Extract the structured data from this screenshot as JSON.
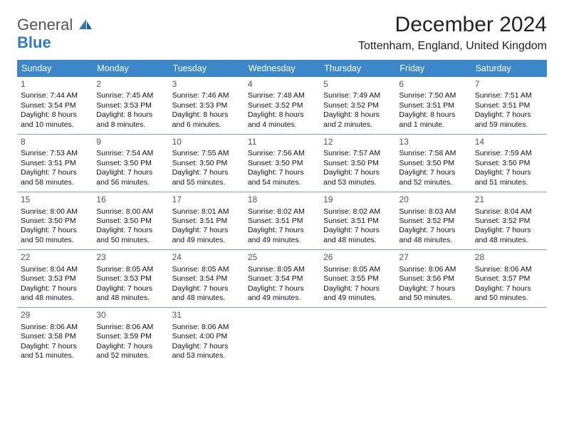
{
  "logo": {
    "text_top": "General",
    "text_bottom": "Blue",
    "color_gray": "#515355",
    "color_blue": "#2f7bbf"
  },
  "title": "December 2024",
  "subtitle": "Tottenham, England, United Kingdom",
  "weekday_bg": "#3b87c8",
  "weekday_fg": "#ffffff",
  "divider_color": "#7aa3c8",
  "weekdays": [
    "Sunday",
    "Monday",
    "Tuesday",
    "Wednesday",
    "Thursday",
    "Friday",
    "Saturday"
  ],
  "weeks": [
    [
      {
        "n": "1",
        "sunrise": "Sunrise: 7:44 AM",
        "sunset": "Sunset: 3:54 PM",
        "daylight": "Daylight: 8 hours and 10 minutes."
      },
      {
        "n": "2",
        "sunrise": "Sunrise: 7:45 AM",
        "sunset": "Sunset: 3:53 PM",
        "daylight": "Daylight: 8 hours and 8 minutes."
      },
      {
        "n": "3",
        "sunrise": "Sunrise: 7:46 AM",
        "sunset": "Sunset: 3:53 PM",
        "daylight": "Daylight: 8 hours and 6 minutes."
      },
      {
        "n": "4",
        "sunrise": "Sunrise: 7:48 AM",
        "sunset": "Sunset: 3:52 PM",
        "daylight": "Daylight: 8 hours and 4 minutes."
      },
      {
        "n": "5",
        "sunrise": "Sunrise: 7:49 AM",
        "sunset": "Sunset: 3:52 PM",
        "daylight": "Daylight: 8 hours and 2 minutes."
      },
      {
        "n": "6",
        "sunrise": "Sunrise: 7:50 AM",
        "sunset": "Sunset: 3:51 PM",
        "daylight": "Daylight: 8 hours and 1 minute."
      },
      {
        "n": "7",
        "sunrise": "Sunrise: 7:51 AM",
        "sunset": "Sunset: 3:51 PM",
        "daylight": "Daylight: 7 hours and 59 minutes."
      }
    ],
    [
      {
        "n": "8",
        "sunrise": "Sunrise: 7:53 AM",
        "sunset": "Sunset: 3:51 PM",
        "daylight": "Daylight: 7 hours and 58 minutes."
      },
      {
        "n": "9",
        "sunrise": "Sunrise: 7:54 AM",
        "sunset": "Sunset: 3:50 PM",
        "daylight": "Daylight: 7 hours and 56 minutes."
      },
      {
        "n": "10",
        "sunrise": "Sunrise: 7:55 AM",
        "sunset": "Sunset: 3:50 PM",
        "daylight": "Daylight: 7 hours and 55 minutes."
      },
      {
        "n": "11",
        "sunrise": "Sunrise: 7:56 AM",
        "sunset": "Sunset: 3:50 PM",
        "daylight": "Daylight: 7 hours and 54 minutes."
      },
      {
        "n": "12",
        "sunrise": "Sunrise: 7:57 AM",
        "sunset": "Sunset: 3:50 PM",
        "daylight": "Daylight: 7 hours and 53 minutes."
      },
      {
        "n": "13",
        "sunrise": "Sunrise: 7:58 AM",
        "sunset": "Sunset: 3:50 PM",
        "daylight": "Daylight: 7 hours and 52 minutes."
      },
      {
        "n": "14",
        "sunrise": "Sunrise: 7:59 AM",
        "sunset": "Sunset: 3:50 PM",
        "daylight": "Daylight: 7 hours and 51 minutes."
      }
    ],
    [
      {
        "n": "15",
        "sunrise": "Sunrise: 8:00 AM",
        "sunset": "Sunset: 3:50 PM",
        "daylight": "Daylight: 7 hours and 50 minutes."
      },
      {
        "n": "16",
        "sunrise": "Sunrise: 8:00 AM",
        "sunset": "Sunset: 3:50 PM",
        "daylight": "Daylight: 7 hours and 50 minutes."
      },
      {
        "n": "17",
        "sunrise": "Sunrise: 8:01 AM",
        "sunset": "Sunset: 3:51 PM",
        "daylight": "Daylight: 7 hours and 49 minutes."
      },
      {
        "n": "18",
        "sunrise": "Sunrise: 8:02 AM",
        "sunset": "Sunset: 3:51 PM",
        "daylight": "Daylight: 7 hours and 49 minutes."
      },
      {
        "n": "19",
        "sunrise": "Sunrise: 8:02 AM",
        "sunset": "Sunset: 3:51 PM",
        "daylight": "Daylight: 7 hours and 48 minutes."
      },
      {
        "n": "20",
        "sunrise": "Sunrise: 8:03 AM",
        "sunset": "Sunset: 3:52 PM",
        "daylight": "Daylight: 7 hours and 48 minutes."
      },
      {
        "n": "21",
        "sunrise": "Sunrise: 8:04 AM",
        "sunset": "Sunset: 3:52 PM",
        "daylight": "Daylight: 7 hours and 48 minutes."
      }
    ],
    [
      {
        "n": "22",
        "sunrise": "Sunrise: 8:04 AM",
        "sunset": "Sunset: 3:53 PM",
        "daylight": "Daylight: 7 hours and 48 minutes."
      },
      {
        "n": "23",
        "sunrise": "Sunrise: 8:05 AM",
        "sunset": "Sunset: 3:53 PM",
        "daylight": "Daylight: 7 hours and 48 minutes."
      },
      {
        "n": "24",
        "sunrise": "Sunrise: 8:05 AM",
        "sunset": "Sunset: 3:54 PM",
        "daylight": "Daylight: 7 hours and 48 minutes."
      },
      {
        "n": "25",
        "sunrise": "Sunrise: 8:05 AM",
        "sunset": "Sunset: 3:54 PM",
        "daylight": "Daylight: 7 hours and 49 minutes."
      },
      {
        "n": "26",
        "sunrise": "Sunrise: 8:05 AM",
        "sunset": "Sunset: 3:55 PM",
        "daylight": "Daylight: 7 hours and 49 minutes."
      },
      {
        "n": "27",
        "sunrise": "Sunrise: 8:06 AM",
        "sunset": "Sunset: 3:56 PM",
        "daylight": "Daylight: 7 hours and 50 minutes."
      },
      {
        "n": "28",
        "sunrise": "Sunrise: 8:06 AM",
        "sunset": "Sunset: 3:57 PM",
        "daylight": "Daylight: 7 hours and 50 minutes."
      }
    ],
    [
      {
        "n": "29",
        "sunrise": "Sunrise: 8:06 AM",
        "sunset": "Sunset: 3:58 PM",
        "daylight": "Daylight: 7 hours and 51 minutes."
      },
      {
        "n": "30",
        "sunrise": "Sunrise: 8:06 AM",
        "sunset": "Sunset: 3:59 PM",
        "daylight": "Daylight: 7 hours and 52 minutes."
      },
      {
        "n": "31",
        "sunrise": "Sunrise: 8:06 AM",
        "sunset": "Sunset: 4:00 PM",
        "daylight": "Daylight: 7 hours and 53 minutes."
      },
      null,
      null,
      null,
      null
    ]
  ]
}
